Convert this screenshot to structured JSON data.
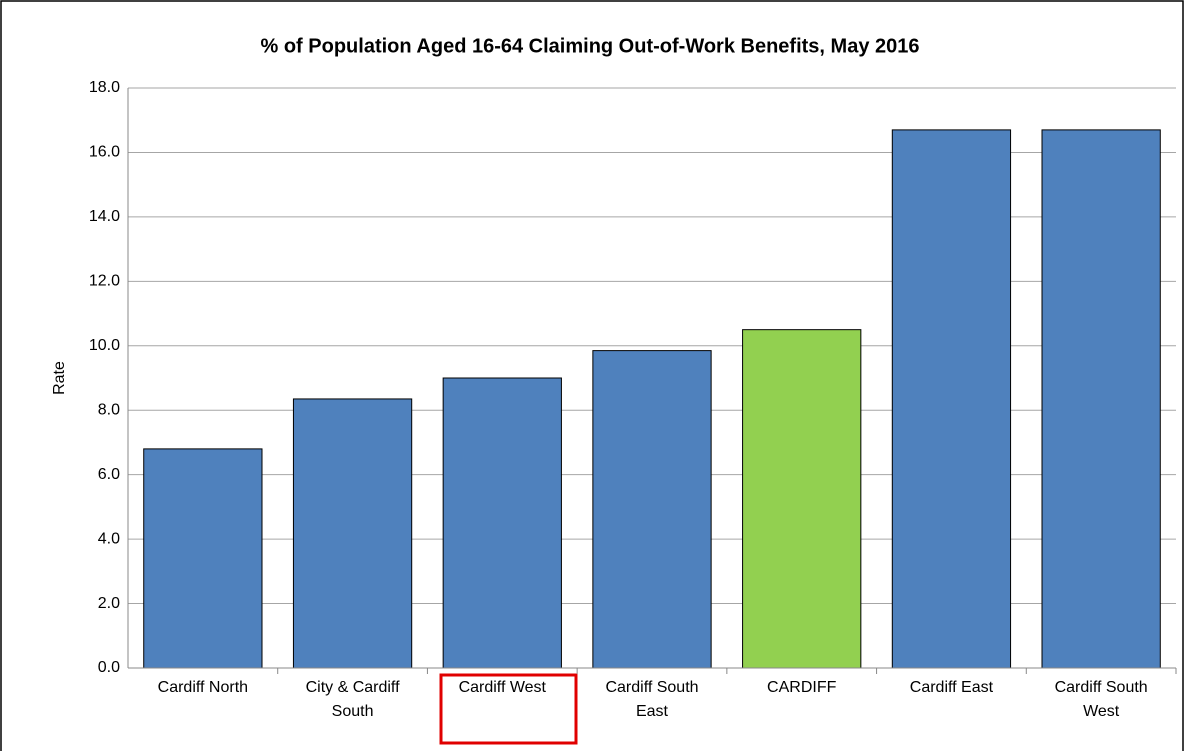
{
  "chart_data": {
    "type": "bar",
    "title": "% of Population Aged 16-64 Claiming Out-of-Work Benefits, May 2016",
    "y_label": "Rate",
    "categories": [
      "Cardiff North",
      "City & Cardiff South",
      "Cardiff West",
      "Cardiff South East",
      "CARDIFF",
      "Cardiff East",
      "Cardiff South West"
    ],
    "values": [
      6.8,
      8.35,
      9.0,
      9.85,
      10.5,
      16.7,
      16.7
    ],
    "colors": [
      "#4f81bd",
      "#4f81bd",
      "#4f81bd",
      "#4f81bd",
      "#92d050",
      "#4f81bd",
      "#4f81bd"
    ],
    "ylim": [
      0,
      18
    ],
    "yticks": [
      {
        "value": 0,
        "label": "0.0"
      },
      {
        "value": 2,
        "label": "2.0"
      },
      {
        "value": 4,
        "label": "4.0"
      },
      {
        "value": 6,
        "label": "6.0"
      },
      {
        "value": 8,
        "label": "8.0"
      },
      {
        "value": 10,
        "label": "10.0"
      },
      {
        "value": 12,
        "label": "12.0"
      },
      {
        "value": 14,
        "label": "14.0"
      },
      {
        "value": 16,
        "label": "16.0"
      },
      {
        "value": 18,
        "label": "18.0"
      }
    ],
    "grid": true
  }
}
